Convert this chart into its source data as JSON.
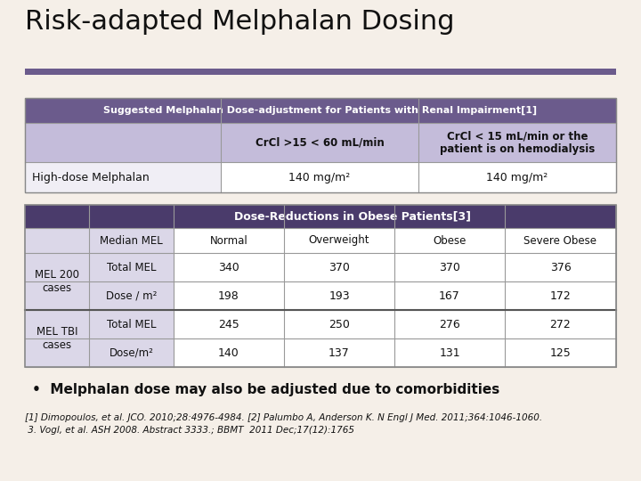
{
  "title": "Risk-adapted Melphalan Dosing",
  "background_color": "#f5efe8",
  "title_color": "#111111",
  "title_fontsize": 22,
  "divider_color": "#6b5b8c",
  "table1": {
    "header_text": "Suggested Melphalan Dose-adjustment for Patients with Renal Impairment[1]",
    "header_bg": "#6b5b8c",
    "header_fg": "#ffffff",
    "col_header_bg": "#c4bcda",
    "col_label_bg": "#c4bcda",
    "col_headers": [
      "CrCl >15 < 60 mL/min",
      "CrCl < 15 mL/min or the\npatient is on hemodialysis"
    ],
    "row_label_bg": "#f0eef5",
    "row_label": "High-dose Melphalan",
    "row_values": [
      "140 mg/m²",
      "140 mg/m²"
    ],
    "row_bg": "#ffffff"
  },
  "table2": {
    "header_text": "Dose-Reductions in Obese Patients[3]",
    "header_bg": "#4a3b6b",
    "header_fg": "#ffffff",
    "col_header_bg": "#dbd7e8",
    "row_label_bg": "#dbd7e8",
    "col_headers": [
      "Median MEL",
      "Normal",
      "Overweight",
      "Obese",
      "Severe Obese"
    ],
    "row_bg": "#ffffff",
    "rows": [
      {
        "group_label": "MEL 200\ncases",
        "sub_rows": [
          {
            "label": "Total MEL",
            "values": [
              "340",
              "370",
              "370",
              "376"
            ]
          },
          {
            "label": "Dose / m²",
            "values": [
              "198",
              "193",
              "167",
              "172"
            ]
          }
        ]
      },
      {
        "group_label": "MEL TBI\ncases",
        "sub_rows": [
          {
            "label": "Total MEL",
            "values": [
              "245",
              "250",
              "276",
              "272"
            ]
          },
          {
            "label": "Dose/m²",
            "values": [
              "140",
              "137",
              "131",
              "125"
            ]
          }
        ]
      }
    ]
  },
  "bullet_text": "Melphalan dose may also be adjusted due to comorbidities",
  "footnote_line1": "[1] Dimopoulos, et al. JCO. 2010;28:4976-4984. [2] Palumbo A, Anderson K. N Engl J Med. 2011;364:1046-1060.",
  "footnote_line2": " 3. Vogl, et al. ASH 2008. Abstract 3333.; BBMT  2011 Dec;17(12):1765",
  "footnote_fontsize": 7.5,
  "bullet_fontsize": 11
}
